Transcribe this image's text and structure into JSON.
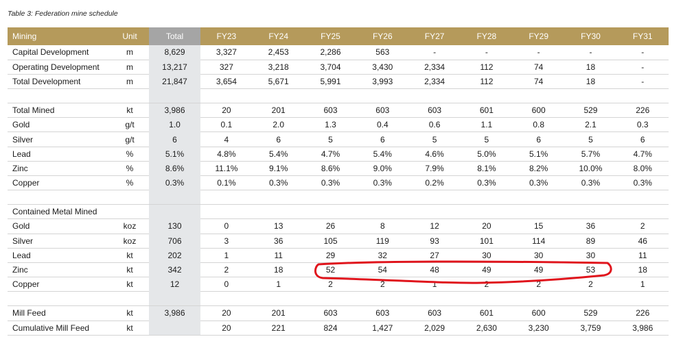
{
  "caption": "Table 3: Federation mine schedule",
  "header": [
    "Mining",
    "Unit",
    "Total",
    "FY23",
    "FY24",
    "FY25",
    "FY26",
    "FY27",
    "FY28",
    "FY29",
    "FY30",
    "FY31"
  ],
  "rows": [
    {
      "cells": [
        "Capital Development",
        "m",
        "8,629",
        "3,327",
        "2,453",
        "2,286",
        "563",
        "-",
        "-",
        "-",
        "-",
        "-"
      ]
    },
    {
      "cells": [
        "Operating Development",
        "m",
        "13,217",
        "327",
        "3,218",
        "3,704",
        "3,430",
        "2,334",
        "112",
        "74",
        "18",
        "-"
      ]
    },
    {
      "cells": [
        "Total Development",
        "m",
        "21,847",
        "3,654",
        "5,671",
        "5,991",
        "3,993",
        "2,334",
        "112",
        "74",
        "18",
        "-"
      ]
    },
    {
      "spacer": true
    },
    {
      "cells": [
        "Total Mined",
        "kt",
        "3,986",
        "20",
        "201",
        "603",
        "603",
        "603",
        "601",
        "600",
        "529",
        "226"
      ]
    },
    {
      "cells": [
        "Gold",
        "g/t",
        "1.0",
        "0.1",
        "2.0",
        "1.3",
        "0.4",
        "0.6",
        "1.1",
        "0.8",
        "2.1",
        "0.3"
      ]
    },
    {
      "cells": [
        "Silver",
        "g/t",
        "6",
        "4",
        "6",
        "5",
        "6",
        "5",
        "5",
        "6",
        "5",
        "6"
      ]
    },
    {
      "cells": [
        "Lead",
        "%",
        "5.1%",
        "4.8%",
        "5.4%",
        "4.7%",
        "5.4%",
        "4.6%",
        "5.0%",
        "5.1%",
        "5.7%",
        "4.7%"
      ]
    },
    {
      "cells": [
        "Zinc",
        "%",
        "8.6%",
        "11.1%",
        "9.1%",
        "8.6%",
        "9.0%",
        "7.9%",
        "8.1%",
        "8.2%",
        "10.0%",
        "8.0%"
      ]
    },
    {
      "cells": [
        "Copper",
        "%",
        "0.3%",
        "0.1%",
        "0.3%",
        "0.3%",
        "0.3%",
        "0.2%",
        "0.3%",
        "0.3%",
        "0.3%",
        "0.3%"
      ]
    },
    {
      "spacer": true
    },
    {
      "cells": [
        "Contained Metal Mined",
        "",
        "",
        "",
        "",
        "",
        "",
        "",
        "",
        "",
        "",
        ""
      ]
    },
    {
      "cells": [
        "Gold",
        "koz",
        "130",
        "0",
        "13",
        "26",
        "8",
        "12",
        "20",
        "15",
        "36",
        "2"
      ]
    },
    {
      "cells": [
        "Silver",
        "koz",
        "706",
        "3",
        "36",
        "105",
        "119",
        "93",
        "101",
        "114",
        "89",
        "46"
      ]
    },
    {
      "cells": [
        "Lead",
        "kt",
        "202",
        "1",
        "11",
        "29",
        "32",
        "27",
        "30",
        "30",
        "30",
        "11"
      ]
    },
    {
      "cells": [
        "Zinc",
        "kt",
        "342",
        "2",
        "18",
        "52",
        "54",
        "48",
        "49",
        "49",
        "53",
        "18"
      ]
    },
    {
      "cells": [
        "Copper",
        "kt",
        "12",
        "0",
        "1",
        "2",
        "2",
        "1",
        "2",
        "2",
        "2",
        "1"
      ]
    },
    {
      "spacer": true
    },
    {
      "cells": [
        "Mill Feed",
        "kt",
        "3,986",
        "20",
        "201",
        "603",
        "603",
        "603",
        "601",
        "600",
        "529",
        "226"
      ]
    },
    {
      "cells": [
        "Cumulative Mill Feed",
        "kt",
        "",
        "20",
        "221",
        "824",
        "1,427",
        "2,029",
        "2,630",
        "3,230",
        "3,759",
        "3,986"
      ]
    }
  ],
  "colors": {
    "header": "#b59a5b",
    "total_header": "#a5a5a5",
    "total_column": "#e5e7e9",
    "annotation": "#e0141c"
  }
}
